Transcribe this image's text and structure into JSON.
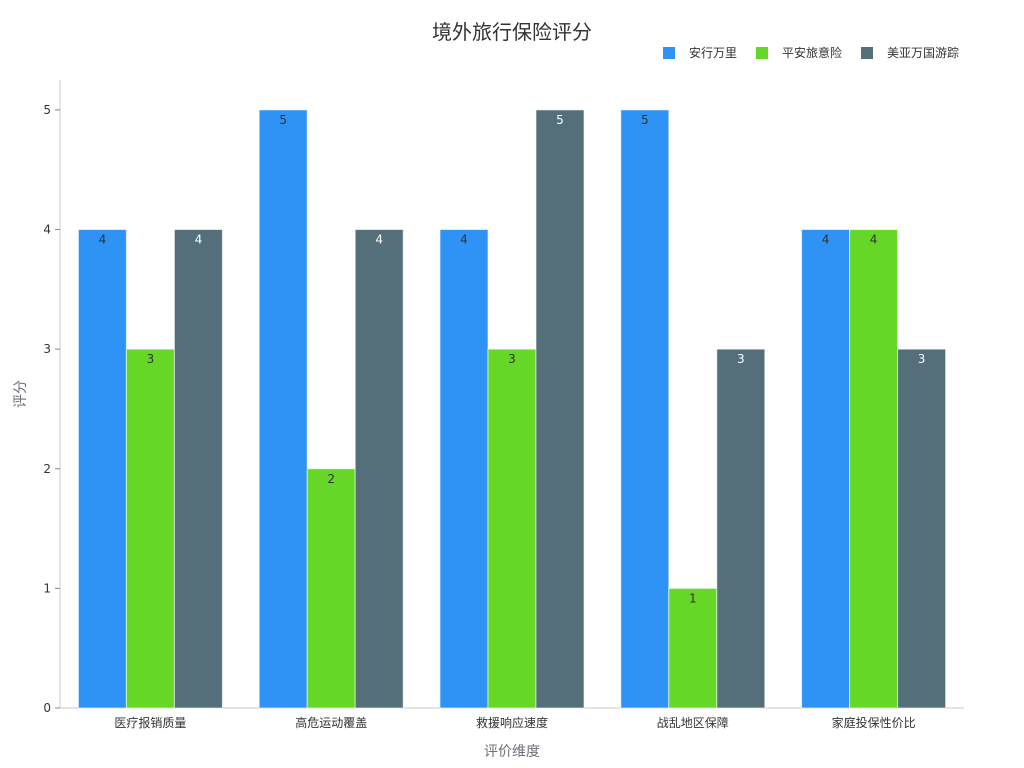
{
  "chart_data": {
    "type": "bar",
    "title": "境外旅行保险评分",
    "xlabel": "评价维度",
    "ylabel": "评分",
    "ylim": [
      0,
      5.25
    ],
    "yticks": [
      0,
      1,
      2,
      3,
      4,
      5
    ],
    "grid": false,
    "legend_position": "top-right",
    "categories": [
      "医疗报销质量",
      "高危运动覆盖",
      "救援响应速度",
      "战乱地区保障",
      "家庭投保性价比"
    ],
    "series": [
      {
        "name": "安行万里",
        "color": "#2E93F5",
        "values": [
          4,
          5,
          4,
          5,
          4
        ],
        "label_color": "#333333"
      },
      {
        "name": "平安旅意险",
        "color": "#66D726",
        "values": [
          3,
          2,
          3,
          1,
          4
        ],
        "label_color": "#333333"
      },
      {
        "name": "美亚万国游踪",
        "color": "#546E7A",
        "values": [
          4,
          4,
          5,
          3,
          3
        ],
        "label_color": "#ffffff"
      }
    ]
  }
}
